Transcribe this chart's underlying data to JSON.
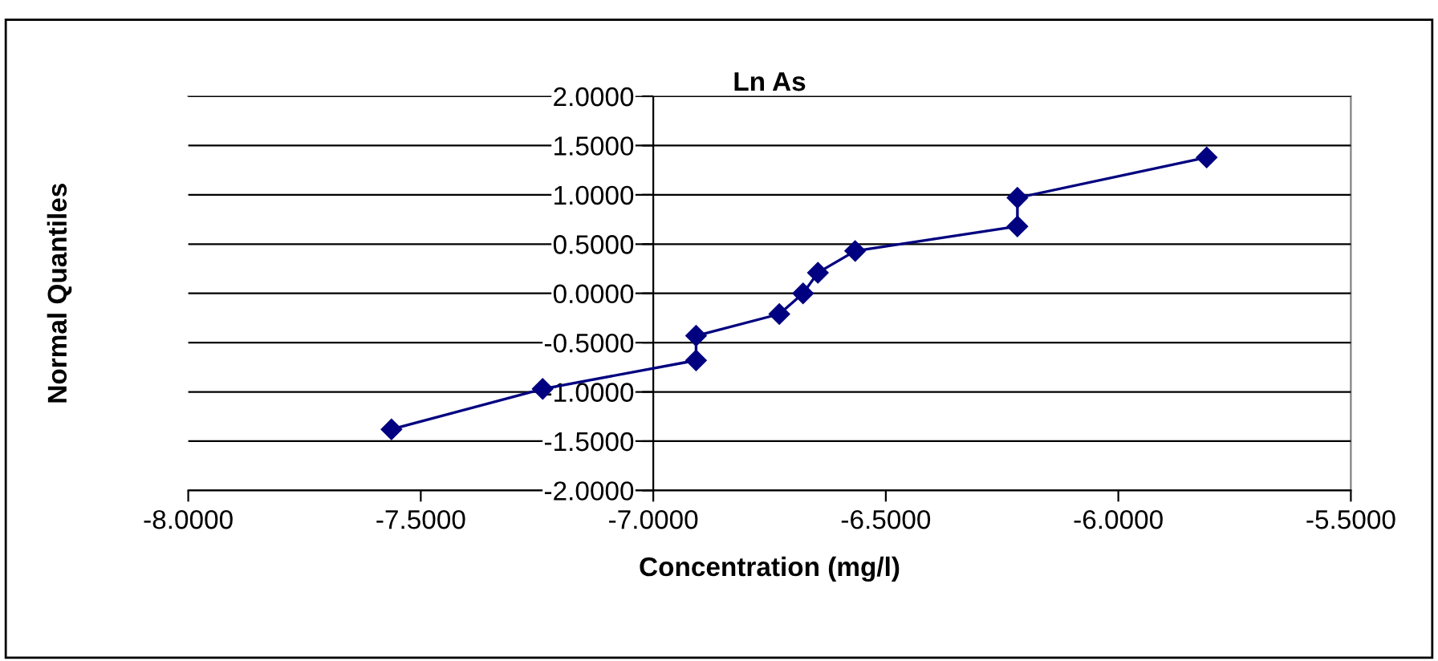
{
  "chart_data": {
    "type": "line",
    "title": "Ln As",
    "xlabel": "Concentration (mg/l)",
    "ylabel": "Normal Quantiles",
    "x": [
      -7.563,
      -7.238,
      -6.908,
      -6.908,
      -6.729,
      -6.678,
      -6.646,
      -6.566,
      -6.217,
      -6.217,
      -5.81
    ],
    "series": [
      {
        "color": "#000080",
        "values": [
          -1.38,
          -0.97,
          -0.68,
          -0.43,
          -0.21,
          0.0,
          0.21,
          0.43,
          0.68,
          0.97,
          1.38
        ]
      }
    ],
    "xlim": [
      -8,
      -5.5
    ],
    "ylim": [
      -2,
      2
    ],
    "xticks": [
      {
        "value": -8,
        "label": "-8.0000"
      },
      {
        "value": -7.5,
        "label": "-7.5000"
      },
      {
        "value": -7,
        "label": "-7.0000"
      },
      {
        "value": -6.5,
        "label": "-6.5000"
      },
      {
        "value": -6,
        "label": "-6.0000"
      },
      {
        "value": -5.5,
        "label": "-5.5000"
      }
    ],
    "yticks": [
      {
        "value": -2,
        "label": "-2.0000"
      },
      {
        "value": -1.5,
        "label": "-1.5000"
      },
      {
        "value": -1,
        "label": "-1.0000"
      },
      {
        "value": -0.5,
        "label": "-0.5000"
      },
      {
        "value": 0,
        "label": "0.0000"
      },
      {
        "value": 0.5,
        "label": "0.5000"
      },
      {
        "value": 1,
        "label": "1.0000"
      },
      {
        "value": 1.5,
        "label": "1.5000"
      },
      {
        "value": 2,
        "label": "2.0000"
      }
    ],
    "grid": "y",
    "marker": "diamond",
    "line_style": "solid",
    "legend": false
  }
}
